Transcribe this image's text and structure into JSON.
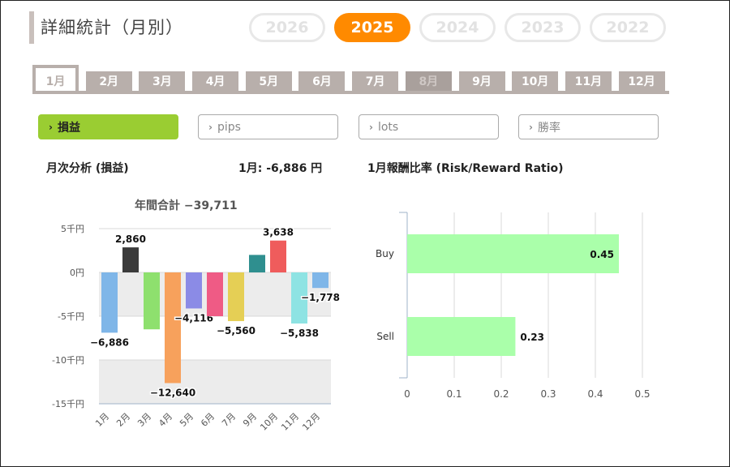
{
  "page": {
    "title": "詳細統計（月別）",
    "years": [
      {
        "label": "2026",
        "active": false
      },
      {
        "label": "2025",
        "active": true
      },
      {
        "label": "2024",
        "active": false
      },
      {
        "label": "2023",
        "active": false
      },
      {
        "label": "2022",
        "active": false
      }
    ],
    "months": [
      {
        "label": "1月",
        "state": "active"
      },
      {
        "label": "2月",
        "state": "normal"
      },
      {
        "label": "3月",
        "state": "normal"
      },
      {
        "label": "4月",
        "state": "normal"
      },
      {
        "label": "5月",
        "state": "normal"
      },
      {
        "label": "6月",
        "state": "normal"
      },
      {
        "label": "7月",
        "state": "normal"
      },
      {
        "label": "8月",
        "state": "disabled"
      },
      {
        "label": "9月",
        "state": "normal"
      },
      {
        "label": "10月",
        "state": "normal"
      },
      {
        "label": "11月",
        "state": "normal"
      },
      {
        "label": "12月",
        "state": "normal"
      }
    ],
    "metrics": [
      {
        "label": "損益",
        "active": true
      },
      {
        "label": "pips",
        "active": false
      },
      {
        "label": "lots",
        "active": false
      },
      {
        "label": "勝率",
        "active": false
      }
    ],
    "chevron": "›",
    "left_heading": "月次分析 (損益)",
    "month_summary": "1月:  -6,886 円",
    "right_heading": "1月報酬比率 (Risk/Reward Ratio)",
    "annual_total": "年間合計 −39,711",
    "accent_color": "#ff8a00",
    "active_metric_color": "#9acd32"
  },
  "chart_data": [
    {
      "type": "bar",
      "orientation": "vertical",
      "categories": [
        "1月",
        "2月",
        "3月",
        "4月",
        "5月",
        "6月",
        "7月",
        "9月",
        "10月",
        "11月",
        "12月"
      ],
      "values": [
        -6886,
        2860,
        -6500,
        -12640,
        -4116,
        -5000,
        -5560,
        2000,
        3638,
        -5838,
        -1778
      ],
      "data_labels": [
        "−6,886",
        "2,860",
        "",
        "−12,640",
        "−4,116",
        "",
        "−5,560",
        "",
        "3,638",
        "−5,838",
        "−1,778"
      ],
      "colors": [
        "#7fb6e8",
        "#3b3b3b",
        "#8ee06e",
        "#f7a15c",
        "#8b8be6",
        "#ef5b85",
        "#e5cf55",
        "#2f8f8f",
        "#ef5c5c",
        "#8ee3e3",
        "#7fb6e8"
      ],
      "ylim": [
        -15000,
        5000
      ],
      "yticks": [
        5000,
        0,
        -5000,
        -10000,
        -15000
      ],
      "ytick_labels": [
        "5千円",
        "0円",
        "-5千円",
        "-10千円",
        "-15千円"
      ],
      "grid": true
    },
    {
      "type": "bar",
      "orientation": "horizontal",
      "categories": [
        "Buy",
        "Sell"
      ],
      "values": [
        0.45,
        0.23
      ],
      "data_labels": [
        "0.45",
        "0.23"
      ],
      "color": "#aaffaa",
      "xlim": [
        0,
        0.5
      ],
      "xticks": [
        0,
        0.1,
        0.2,
        0.3,
        0.4,
        0.5
      ],
      "xtick_labels": [
        "0",
        "0.1",
        "0.2",
        "0.3",
        "0.4",
        "0.5"
      ],
      "grid": true
    }
  ]
}
